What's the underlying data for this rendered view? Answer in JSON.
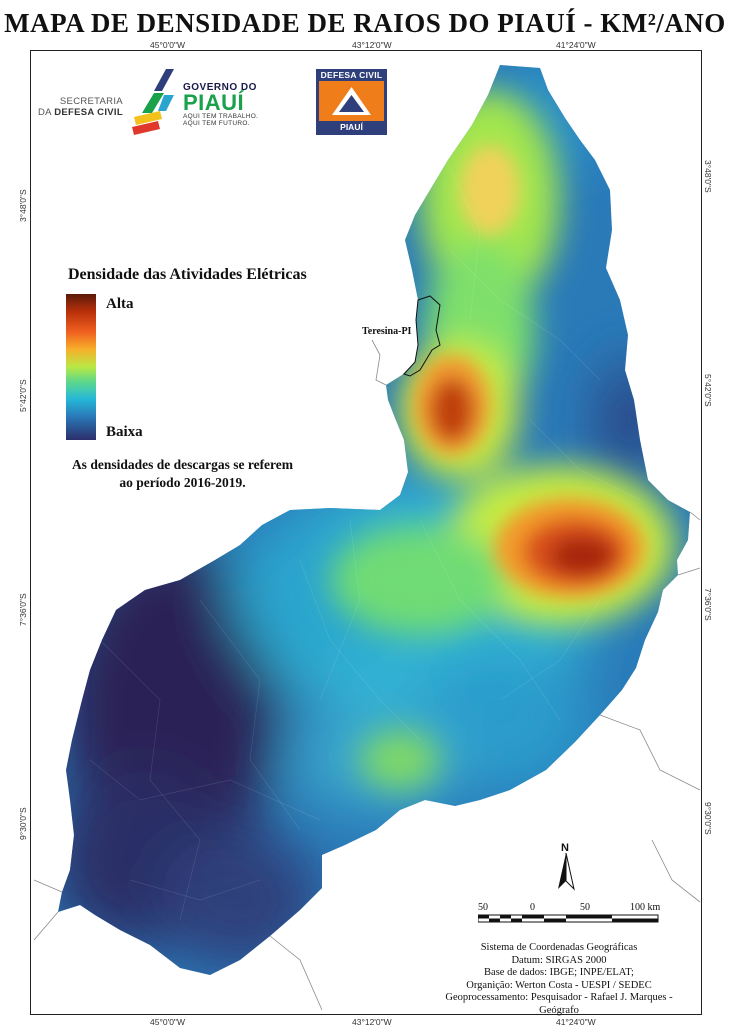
{
  "title": "MAPA DE DENSIDADE DE RAIOS DO PIAUÍ - KM²/ANO",
  "ticks": {
    "top": [
      "45°0'0\"W",
      "43°12'0\"W",
      "41°24'0\"W"
    ],
    "bottom": [
      "45°0'0\"W",
      "43°12'0\"W",
      "41°24'0\"W"
    ],
    "left": [
      "3°48'0\"S",
      "5°42'0\"S",
      "7°36'0\"S",
      "9°30'0\"S"
    ],
    "right": [
      "3°48'0\"S",
      "5°42'0\"S",
      "7°36'0\"S",
      "9°30'0\"S"
    ]
  },
  "logos": {
    "secretaria_line1": "SECRETARIA",
    "secretaria_line2": "DA",
    "secretaria_line3": "DEFESA CIVIL",
    "gov_top": "GOVERNO DO",
    "gov_name": "PIAUÍ",
    "gov_slogan1": "AQUI TEM TRABALHO.",
    "gov_slogan2": "AQUI TEM FUTURO.",
    "dc_top": "DEFESA CIVIL",
    "dc_bottom": "PIAUÍ"
  },
  "legend": {
    "title": "Densidade das Atividades Elétricas",
    "high": "Alta",
    "low": "Baixa",
    "note_line1": "As densidades de descargas se referem",
    "note_line2": "ao período 2016-2019."
  },
  "city_label": "Teresina-PI",
  "north": "N",
  "scale": {
    "labels": [
      "50",
      "0",
      "50",
      "100 km"
    ]
  },
  "footer": {
    "line1": "Sistema de Coordenadas Geográficas",
    "line2": "Datum: SIRGAS 2000",
    "line3": "Base de dados: IBGE; INPE/ELAT;",
    "line4": "Organição: Werton Costa - UESPI / SEDEC",
    "line5": "Geoprocessamento: Pesquisador - Rafael J. Marques - Geógrafo"
  },
  "colors": {
    "very_low": "#2b1f4f",
    "low": "#2a6fb5",
    "mid_low": "#27b6d6",
    "mid": "#a8e84a",
    "mid_high": "#f0a02a",
    "high": "#a8280c"
  }
}
